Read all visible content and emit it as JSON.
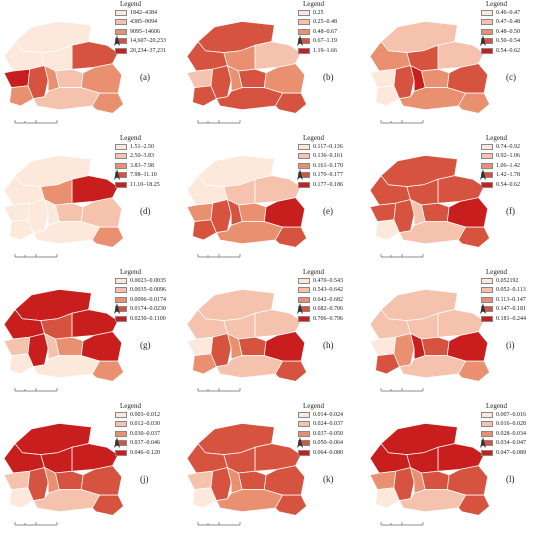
{
  "legend_title": "Legend",
  "palette": [
    "#fde8dc",
    "#f5c3ad",
    "#e8906f",
    "#d6533f",
    "#c81e1e"
  ],
  "icons": {
    "north_arrow": "north-arrow-icon",
    "scale_bar": "scale-bar-icon"
  },
  "panels": [
    {
      "label": "(a)",
      "ranges": [
        "1842–4384",
        "4385–9094",
        "9095–14606",
        "14,607–20,233",
        "20,234–37,231"
      ],
      "regions": [
        0,
        0,
        0,
        3,
        4,
        2,
        3,
        2,
        1,
        2,
        1,
        2
      ]
    },
    {
      "label": "(b)",
      "ranges": [
        "0.25",
        "0.25–0.48",
        "0.48–0.67",
        "0.67–1.19",
        "1.19–1.66"
      ],
      "regions": [
        3,
        3,
        2,
        1,
        1,
        3,
        3,
        2,
        3,
        2,
        3,
        3
      ]
    },
    {
      "label": "(c)",
      "ranges": [
        "0.46–0.47",
        "0.47–0.48",
        "0.48–0.50",
        "0.50–0.54",
        "0.54–0.62"
      ],
      "regions": [
        1,
        2,
        3,
        1,
        0,
        0,
        3,
        4,
        2,
        3,
        2,
        2
      ]
    },
    {
      "label": "(d)",
      "ranges": [
        "1.51–2.50",
        "2.50–3.83",
        "3.83–7.98",
        "7.98–11.10",
        "11.10–18.25"
      ],
      "regions": [
        0,
        0,
        2,
        4,
        0,
        0,
        0,
        0,
        1,
        1,
        0,
        2
      ]
    },
    {
      "label": "(e)",
      "ranges": [
        "0.117–0.136",
        "0.136–0.161",
        "0.161–0.170",
        "0.170–0.177",
        "0.177–0.186"
      ],
      "regions": [
        0,
        0,
        1,
        1,
        2,
        3,
        3,
        3,
        2,
        4,
        2,
        3
      ]
    },
    {
      "label": "(f)",
      "ranges": [
        "0.74–0.92",
        "0.92–1.06",
        "1.06–1.42",
        "1.42–1.78",
        "0.54–0.62"
      ],
      "regions": [
        3,
        3,
        3,
        3,
        3,
        0,
        3,
        1,
        3,
        4,
        1,
        3
      ]
    },
    {
      "label": "(g)",
      "ranges": [
        "0.0023–0.0035",
        "0.0035–0.0096",
        "0.0096–0.0174",
        "0.0174–0.0230",
        "0.0230–0.1100"
      ],
      "regions": [
        4,
        4,
        3,
        4,
        1,
        0,
        4,
        1,
        2,
        4,
        0,
        2
      ]
    },
    {
      "label": "(h)",
      "ranges": [
        "0.470–0.543",
        "0.543–0.642",
        "0.642–0.682",
        "0.682–0.706",
        "0.706–0.796"
      ],
      "regions": [
        1,
        1,
        1,
        1,
        0,
        2,
        3,
        2,
        3,
        4,
        1,
        3
      ]
    },
    {
      "label": "(i)",
      "ranges": [
        "0.052192",
        "0.052–0.113",
        "0.113–0.147",
        "0.147–0.181",
        "0.181–0.244"
      ],
      "regions": [
        1,
        1,
        1,
        1,
        0,
        3,
        2,
        4,
        3,
        4,
        1,
        2
      ]
    },
    {
      "label": "(j)",
      "ranges": [
        "0.003–0.012",
        "0.012–0.030",
        "0.030–0.037",
        "0.037–0.046",
        "0.046–0.120"
      ],
      "regions": [
        4,
        4,
        4,
        4,
        1,
        0,
        3,
        2,
        3,
        3,
        1,
        3
      ]
    },
    {
      "label": "(k)",
      "ranges": [
        "0.014–0.024",
        "0.024–0.037",
        "0.037–0.050",
        "0.050–0.064",
        "0.064–0.080"
      ],
      "regions": [
        3,
        3,
        3,
        3,
        1,
        0,
        3,
        2,
        3,
        3,
        2,
        3
      ]
    },
    {
      "label": "(l)",
      "ranges": [
        "0.007–0.016",
        "0.016–0.028",
        "0.028–0.034",
        "0.034–0.047",
        "0.047–0.089"
      ],
      "regions": [
        4,
        4,
        4,
        4,
        2,
        0,
        3,
        2,
        3,
        3,
        1,
        3
      ]
    }
  ]
}
